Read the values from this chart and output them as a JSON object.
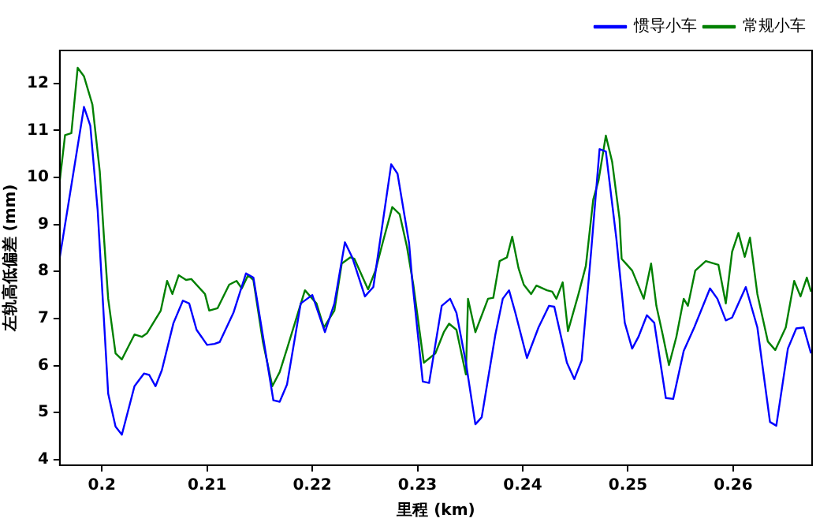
{
  "chart_data": {
    "type": "line",
    "xlabel": "里程 (km)",
    "ylabel": "左轨高低偏差 (mm)",
    "xlim": [
      0.196,
      0.2675
    ],
    "xticks": [
      0.2,
      0.21,
      0.22,
      0.23,
      0.24,
      0.25,
      0.26
    ],
    "ylim": [
      3.88,
      12.7
    ],
    "yticks": [
      4,
      5,
      6,
      7,
      8,
      9,
      10,
      11,
      12
    ],
    "grid": false,
    "legend": "top right",
    "line_style": "solid",
    "series": [
      {
        "name": "惯导小车",
        "color": "#0000ff",
        "x": [
          0.196,
          0.1983,
          0.1989,
          0.1996,
          0.2006,
          0.2013,
          0.2019,
          0.2031,
          0.204,
          0.2045,
          0.2051,
          0.2057,
          0.2068,
          0.2077,
          0.2083,
          0.209,
          0.21,
          0.2107,
          0.2112,
          0.2125,
          0.2137,
          0.2144,
          0.2154,
          0.2163,
          0.2169,
          0.2176,
          0.2189,
          0.22,
          0.2212,
          0.2221,
          0.2231,
          0.2238,
          0.225,
          0.2258,
          0.2275,
          0.2281,
          0.2292,
          0.2295,
          0.2305,
          0.2311,
          0.2323,
          0.2331,
          0.2337,
          0.2346,
          0.2355,
          0.2361,
          0.2374,
          0.2381,
          0.2387,
          0.2393,
          0.2404,
          0.2415,
          0.2425,
          0.243,
          0.2442,
          0.2449,
          0.2456,
          0.2465,
          0.2473,
          0.2479,
          0.2489,
          0.2497,
          0.2504,
          0.251,
          0.2518,
          0.2525,
          0.2536,
          0.2543,
          0.2553,
          0.2563,
          0.2578,
          0.2585,
          0.2593,
          0.2599,
          0.2612,
          0.2623,
          0.2635,
          0.2641,
          0.2652,
          0.266,
          0.2667,
          0.2674
        ],
        "values": [
          8.3,
          11.5,
          11.1,
          9.3,
          5.4,
          4.7,
          4.53,
          5.56,
          5.83,
          5.8,
          5.56,
          5.9,
          6.9,
          7.38,
          7.32,
          6.76,
          6.44,
          6.46,
          6.5,
          7.12,
          7.96,
          7.87,
          6.5,
          5.26,
          5.23,
          5.6,
          7.32,
          7.5,
          6.71,
          7.32,
          8.62,
          8.3,
          7.47,
          7.67,
          10.28,
          10.08,
          8.6,
          7.8,
          5.66,
          5.63,
          7.27,
          7.42,
          7.12,
          6.06,
          4.75,
          4.9,
          6.66,
          7.42,
          7.6,
          7.12,
          6.16,
          6.81,
          7.27,
          7.25,
          6.06,
          5.71,
          6.11,
          8.42,
          10.6,
          10.55,
          8.7,
          6.91,
          6.36,
          6.61,
          7.07,
          6.91,
          5.31,
          5.29,
          6.31,
          6.81,
          7.64,
          7.42,
          6.96,
          7.02,
          7.67,
          6.81,
          4.8,
          4.72,
          6.36,
          6.79,
          6.81,
          6.26
        ]
      },
      {
        "name": "常规小车",
        "color": "#008000",
        "x": [
          0.196,
          0.1965,
          0.1971,
          0.1977,
          0.1983,
          0.1991,
          0.1998,
          0.2002,
          0.2006,
          0.2013,
          0.2019,
          0.2031,
          0.2038,
          0.2043,
          0.2056,
          0.2062,
          0.2067,
          0.2073,
          0.208,
          0.2085,
          0.2098,
          0.2102,
          0.211,
          0.2121,
          0.2128,
          0.2133,
          0.2139,
          0.2144,
          0.2153,
          0.2162,
          0.2169,
          0.2176,
          0.2193,
          0.2204,
          0.2211,
          0.2221,
          0.2228,
          0.2236,
          0.224,
          0.2253,
          0.226,
          0.2267,
          0.2276,
          0.2283,
          0.229,
          0.2296,
          0.2306,
          0.2317,
          0.2325,
          0.233,
          0.2337,
          0.2346,
          0.2348,
          0.2355,
          0.2367,
          0.2372,
          0.2378,
          0.2385,
          0.239,
          0.2396,
          0.2401,
          0.2408,
          0.2413,
          0.2423,
          0.2428,
          0.2432,
          0.2438,
          0.2443,
          0.2453,
          0.246,
          0.2467,
          0.2472,
          0.2479,
          0.2485,
          0.2492,
          0.2494,
          0.2498,
          0.2504,
          0.2515,
          0.2522,
          0.2527,
          0.2533,
          0.2539,
          0.2546,
          0.2553,
          0.2557,
          0.2564,
          0.2574,
          0.2586,
          0.2593,
          0.2599,
          0.2605,
          0.2611,
          0.2616,
          0.2623,
          0.2633,
          0.264,
          0.265,
          0.2658,
          0.2664,
          0.267,
          0.2674
        ],
        "values": [
          9.93,
          10.9,
          10.94,
          12.33,
          12.15,
          11.55,
          10.13,
          8.72,
          7.42,
          6.26,
          6.13,
          6.66,
          6.61,
          6.69,
          7.17,
          7.8,
          7.52,
          7.92,
          7.82,
          7.84,
          7.52,
          7.17,
          7.22,
          7.72,
          7.8,
          7.64,
          7.92,
          7.82,
          6.51,
          5.56,
          5.86,
          6.36,
          7.6,
          7.32,
          6.81,
          7.17,
          8.17,
          8.3,
          8.27,
          7.62,
          8.02,
          8.62,
          9.37,
          9.22,
          8.52,
          7.72,
          6.06,
          6.26,
          6.71,
          6.89,
          6.76,
          5.81,
          7.42,
          6.71,
          7.42,
          7.44,
          8.22,
          8.3,
          8.74,
          8.07,
          7.72,
          7.52,
          7.7,
          7.6,
          7.57,
          7.42,
          7.77,
          6.73,
          7.52,
          8.12,
          9.53,
          9.93,
          10.89,
          10.33,
          9.12,
          8.27,
          8.17,
          8.02,
          7.42,
          8.17,
          7.27,
          6.66,
          6.01,
          6.61,
          7.42,
          7.27,
          8.02,
          8.22,
          8.14,
          7.32,
          8.42,
          8.82,
          8.31,
          8.72,
          7.52,
          6.51,
          6.33,
          6.81,
          7.8,
          7.47,
          7.87,
          7.57
        ]
      }
    ]
  }
}
